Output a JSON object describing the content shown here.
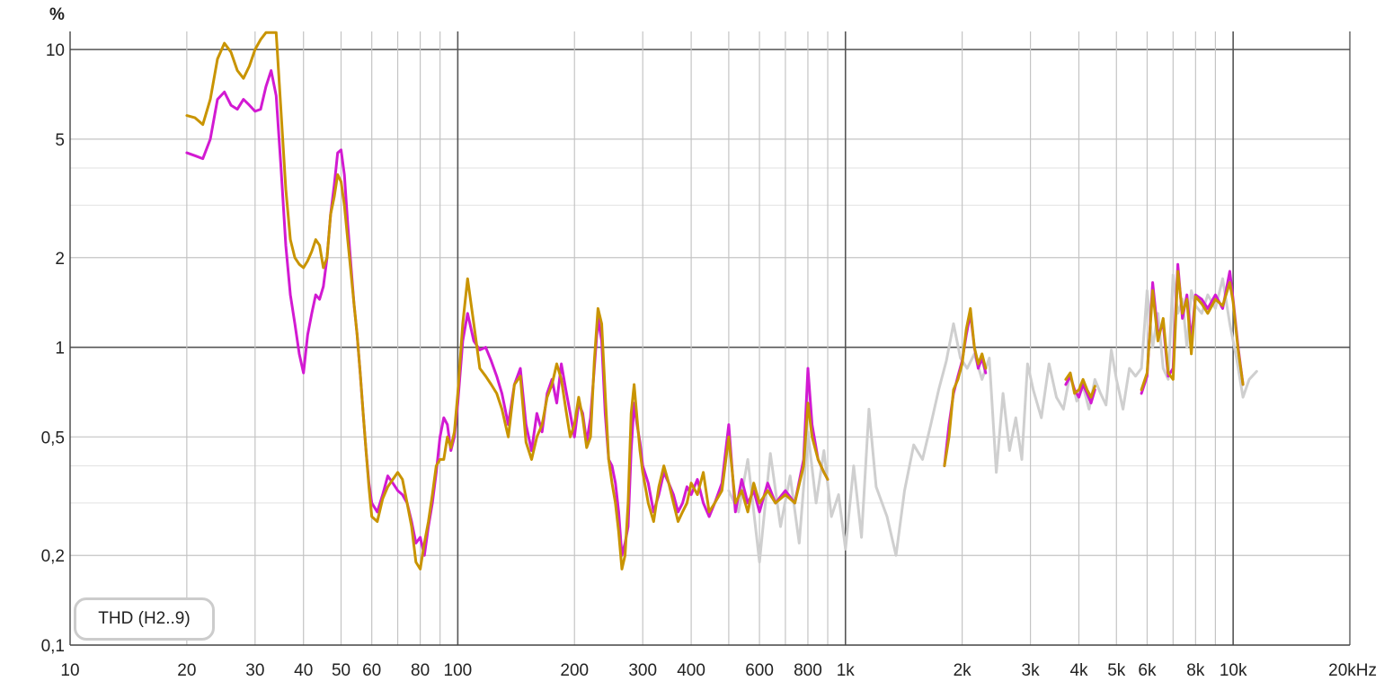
{
  "chart_data": {
    "type": "line",
    "title": "",
    "ylabel": "%",
    "xlabel": "",
    "x_scale": "log",
    "y_scale": "log",
    "xlim": [
      10,
      20000
    ],
    "ylim": [
      0.1,
      11.5
    ],
    "grid": true,
    "y_ticks": [
      {
        "value": 10,
        "label": "10"
      },
      {
        "value": 5,
        "label": "5"
      },
      {
        "value": 2,
        "label": "2"
      },
      {
        "value": 1,
        "label": "1"
      },
      {
        "value": 0.5,
        "label": "0,5"
      },
      {
        "value": 0.2,
        "label": "0,2"
      },
      {
        "value": 0.1,
        "label": "0,1"
      }
    ],
    "y_minor_grid": [
      0.3,
      0.4,
      3,
      4
    ],
    "x_ticks": [
      {
        "value": 10,
        "label": "10"
      },
      {
        "value": 20,
        "label": "20"
      },
      {
        "value": 30,
        "label": "30"
      },
      {
        "value": 40,
        "label": "40"
      },
      {
        "value": 50,
        "label": "50"
      },
      {
        "value": 60,
        "label": "60"
      },
      {
        "value": 80,
        "label": "80"
      },
      {
        "value": 100,
        "label": "100"
      },
      {
        "value": 200,
        "label": "200"
      },
      {
        "value": 300,
        "label": "300"
      },
      {
        "value": 400,
        "label": "400"
      },
      {
        "value": 600,
        "label": "600"
      },
      {
        "value": 800,
        "label": "800"
      },
      {
        "value": 1000,
        "label": "1k"
      },
      {
        "value": 2000,
        "label": "2k"
      },
      {
        "value": 3000,
        "label": "3k"
      },
      {
        "value": 4000,
        "label": "4k"
      },
      {
        "value": 5000,
        "label": "5k"
      },
      {
        "value": 6000,
        "label": "6k"
      },
      {
        "value": 8000,
        "label": "8k"
      },
      {
        "value": 10000,
        "label": "10k"
      },
      {
        "value": 20000,
        "label": "20kHz"
      }
    ],
    "x_grid": [
      20,
      30,
      40,
      50,
      60,
      70,
      80,
      90,
      200,
      300,
      400,
      500,
      600,
      700,
      800,
      900,
      2000,
      3000,
      4000,
      5000,
      6000,
      7000,
      8000,
      9000
    ],
    "x_major_grid": [
      100,
      1000,
      10000
    ],
    "legend": {
      "label": "THD (H2..9)",
      "position": "bottom-left"
    },
    "series": [
      {
        "color": "#cfcfcf",
        "x": [
          500,
          530,
          560,
          600,
          640,
          680,
          720,
          760,
          800,
          840,
          880,
          920,
          960,
          1000,
          1050,
          1100,
          1150,
          1200,
          1280,
          1350,
          1420,
          1500,
          1580,
          1660,
          1740,
          1820,
          1900,
          1980,
          2060,
          2150,
          2250,
          2350,
          2450,
          2550,
          2650,
          2750,
          2850,
          2950,
          3050,
          3200,
          3350,
          3500,
          3650,
          3800,
          3950,
          4100,
          4250,
          4400,
          4550,
          4700,
          4850,
          5000,
          5200,
          5400,
          5600,
          5800,
          6000,
          6200,
          6400,
          6600,
          6800,
          7000,
          7200,
          7400,
          7600,
          7800,
          8000,
          8300,
          8600,
          9000,
          9400,
          9800,
          10200,
          10600,
          11000,
          11500
        ],
        "values": [
          0.33,
          0.28,
          0.42,
          0.19,
          0.44,
          0.25,
          0.37,
          0.22,
          0.52,
          0.3,
          0.45,
          0.27,
          0.32,
          0.21,
          0.4,
          0.23,
          0.62,
          0.34,
          0.27,
          0.2,
          0.33,
          0.47,
          0.42,
          0.55,
          0.72,
          0.9,
          1.2,
          0.92,
          0.85,
          0.95,
          0.78,
          0.92,
          0.38,
          0.7,
          0.45,
          0.58,
          0.42,
          0.88,
          0.72,
          0.58,
          0.88,
          0.68,
          0.62,
          0.82,
          0.66,
          0.74,
          0.62,
          0.78,
          0.7,
          0.64,
          0.98,
          0.78,
          0.62,
          0.85,
          0.8,
          0.85,
          1.55,
          1.0,
          1.3,
          0.85,
          0.78,
          1.75,
          1.3,
          1.45,
          1.0,
          1.55,
          1.38,
          1.3,
          1.5,
          1.35,
          1.7,
          1.2,
          0.92,
          0.68,
          0.78,
          0.83
        ]
      },
      {
        "color": "#d21ad2",
        "x": [
          20,
          21,
          22,
          23,
          24,
          25,
          26,
          27,
          28,
          29,
          30,
          31,
          32,
          33,
          34,
          35,
          36,
          37,
          38,
          39,
          40,
          41,
          42,
          43,
          44,
          45,
          46,
          47,
          48,
          49,
          50,
          51,
          52,
          53,
          54,
          55,
          56,
          57,
          58,
          59,
          60,
          62,
          64,
          66,
          68,
          70,
          72,
          74,
          76,
          78,
          80,
          82,
          84,
          86,
          88,
          90,
          92,
          94,
          96,
          98,
          100,
          103,
          106,
          110,
          114,
          118,
          122,
          126,
          130,
          135,
          140,
          145,
          150,
          155,
          160,
          165,
          170,
          175,
          180,
          185,
          190,
          195,
          200,
          205,
          210,
          215,
          220,
          225,
          230,
          235,
          240,
          245,
          250,
          255,
          260,
          265,
          270,
          275,
          280,
          285,
          290,
          295,
          300,
          310,
          320,
          330,
          340,
          350,
          360,
          370,
          380,
          390,
          400,
          415,
          430,
          445,
          460,
          480,
          500,
          520,
          540,
          560,
          580,
          600,
          630,
          660,
          700,
          740,
          780,
          800,
          820,
          850,
          880,
          900,
          1800,
          1850,
          1900,
          1950,
          2000,
          2050,
          2100,
          2150,
          2200,
          2250,
          2300,
          3700,
          3800,
          3900,
          4000,
          4100,
          4200,
          4300,
          4400,
          5800,
          6000,
          6200,
          6400,
          6600,
          6800,
          7000,
          7200,
          7400,
          7600,
          7800,
          8000,
          8300,
          8600,
          9000,
          9400,
          9800,
          10000,
          10300,
          10600
        ],
        "values": [
          4.5,
          4.4,
          4.3,
          5.0,
          6.8,
          7.2,
          6.5,
          6.3,
          6.8,
          6.5,
          6.2,
          6.3,
          7.5,
          8.5,
          7.0,
          4.0,
          2.2,
          1.5,
          1.2,
          0.95,
          0.82,
          1.1,
          1.3,
          1.5,
          1.45,
          1.6,
          2.0,
          2.8,
          3.5,
          4.5,
          4.6,
          3.8,
          2.6,
          1.9,
          1.4,
          1.1,
          0.82,
          0.6,
          0.45,
          0.35,
          0.3,
          0.28,
          0.32,
          0.37,
          0.35,
          0.33,
          0.32,
          0.3,
          0.26,
          0.22,
          0.23,
          0.2,
          0.25,
          0.3,
          0.38,
          0.5,
          0.58,
          0.55,
          0.45,
          0.5,
          0.65,
          1.05,
          1.3,
          1.05,
          0.98,
          1.0,
          0.9,
          0.8,
          0.7,
          0.55,
          0.75,
          0.85,
          0.55,
          0.45,
          0.6,
          0.52,
          0.7,
          0.78,
          0.65,
          0.88,
          0.72,
          0.6,
          0.5,
          0.65,
          0.6,
          0.48,
          0.58,
          0.85,
          1.25,
          1.05,
          0.6,
          0.42,
          0.4,
          0.35,
          0.28,
          0.2,
          0.22,
          0.25,
          0.45,
          0.65,
          0.55,
          0.48,
          0.4,
          0.35,
          0.28,
          0.32,
          0.38,
          0.35,
          0.32,
          0.28,
          0.3,
          0.34,
          0.32,
          0.36,
          0.3,
          0.27,
          0.3,
          0.35,
          0.55,
          0.28,
          0.36,
          0.3,
          0.33,
          0.28,
          0.35,
          0.3,
          0.33,
          0.3,
          0.42,
          0.85,
          0.55,
          0.42,
          0.38,
          0.36,
          0.4,
          0.55,
          0.7,
          0.8,
          0.9,
          1.1,
          1.3,
          1.0,
          0.85,
          0.92,
          0.82,
          0.75,
          0.8,
          0.72,
          0.68,
          0.75,
          0.7,
          0.65,
          0.72,
          0.7,
          0.8,
          1.65,
          1.1,
          1.2,
          0.8,
          0.85,
          1.9,
          1.25,
          1.5,
          1.05,
          1.5,
          1.45,
          1.35,
          1.5,
          1.35,
          1.8,
          1.45,
          1.0,
          0.75
        ],
        "gaps": [
          [
            900,
            1800
          ],
          [
            2300,
            3700
          ],
          [
            4400,
            5800
          ]
        ]
      },
      {
        "color": "#c99400",
        "x": [
          20,
          21,
          22,
          23,
          24,
          25,
          26,
          27,
          28,
          29,
          30,
          31,
          32,
          33,
          34,
          35,
          36,
          37,
          38,
          39,
          40,
          41,
          42,
          43,
          44,
          45,
          46,
          47,
          48,
          49,
          50,
          51,
          52,
          53,
          54,
          55,
          56,
          57,
          58,
          59,
          60,
          62,
          64,
          66,
          68,
          70,
          72,
          74,
          76,
          78,
          80,
          82,
          84,
          86,
          88,
          90,
          92,
          94,
          96,
          98,
          100,
          103,
          106,
          110,
          114,
          118,
          122,
          126,
          130,
          135,
          140,
          145,
          150,
          155,
          160,
          165,
          170,
          175,
          180,
          185,
          190,
          195,
          200,
          205,
          210,
          215,
          220,
          225,
          230,
          235,
          240,
          245,
          250,
          255,
          260,
          265,
          270,
          275,
          280,
          285,
          290,
          295,
          300,
          310,
          320,
          330,
          340,
          350,
          360,
          370,
          380,
          390,
          400,
          415,
          430,
          445,
          460,
          480,
          500,
          520,
          540,
          560,
          580,
          600,
          630,
          660,
          700,
          740,
          780,
          800,
          820,
          850,
          880,
          900,
          1800,
          1850,
          1900,
          1950,
          2000,
          2050,
          2100,
          2150,
          2200,
          2250,
          2300,
          3700,
          3800,
          3900,
          4000,
          4100,
          4200,
          4300,
          4400,
          5800,
          6000,
          6200,
          6400,
          6600,
          6800,
          7000,
          7200,
          7400,
          7600,
          7800,
          8000,
          8300,
          8600,
          9000,
          9400,
          9800,
          10000,
          10300,
          10600
        ],
        "values": [
          6.0,
          5.9,
          5.6,
          6.8,
          9.3,
          10.5,
          9.8,
          8.5,
          8.0,
          8.8,
          10.0,
          10.8,
          11.4,
          11.4,
          11.4,
          6.2,
          3.4,
          2.3,
          2.0,
          1.9,
          1.85,
          1.95,
          2.1,
          2.3,
          2.2,
          1.85,
          2.0,
          2.8,
          3.2,
          3.8,
          3.6,
          3.0,
          2.3,
          1.8,
          1.4,
          1.1,
          0.82,
          0.6,
          0.45,
          0.34,
          0.27,
          0.26,
          0.31,
          0.34,
          0.36,
          0.38,
          0.36,
          0.3,
          0.25,
          0.19,
          0.18,
          0.22,
          0.26,
          0.32,
          0.4,
          0.42,
          0.42,
          0.5,
          0.46,
          0.52,
          0.7,
          1.2,
          1.7,
          1.2,
          0.85,
          0.8,
          0.75,
          0.7,
          0.62,
          0.5,
          0.75,
          0.8,
          0.48,
          0.42,
          0.5,
          0.55,
          0.68,
          0.75,
          0.88,
          0.78,
          0.62,
          0.5,
          0.55,
          0.68,
          0.58,
          0.46,
          0.5,
          0.9,
          1.35,
          1.2,
          0.7,
          0.42,
          0.35,
          0.3,
          0.24,
          0.18,
          0.2,
          0.3,
          0.6,
          0.75,
          0.58,
          0.45,
          0.38,
          0.3,
          0.26,
          0.34,
          0.4,
          0.35,
          0.3,
          0.26,
          0.28,
          0.3,
          0.35,
          0.32,
          0.38,
          0.28,
          0.3,
          0.33,
          0.5,
          0.3,
          0.33,
          0.28,
          0.35,
          0.3,
          0.33,
          0.3,
          0.32,
          0.3,
          0.4,
          0.65,
          0.5,
          0.42,
          0.38,
          0.36,
          0.4,
          0.5,
          0.72,
          0.78,
          0.88,
          1.15,
          1.35,
          1.0,
          0.88,
          0.95,
          0.85,
          0.78,
          0.82,
          0.7,
          0.72,
          0.78,
          0.72,
          0.68,
          0.74,
          0.72,
          0.82,
          1.55,
          1.05,
          1.25,
          0.82,
          0.78,
          1.8,
          1.3,
          1.45,
          0.95,
          1.48,
          1.4,
          1.3,
          1.45,
          1.38,
          1.65,
          1.42,
          0.98,
          0.75
        ],
        "gaps": [
          [
            900,
            1800
          ],
          [
            2300,
            3700
          ],
          [
            4400,
            5800
          ]
        ]
      }
    ]
  }
}
